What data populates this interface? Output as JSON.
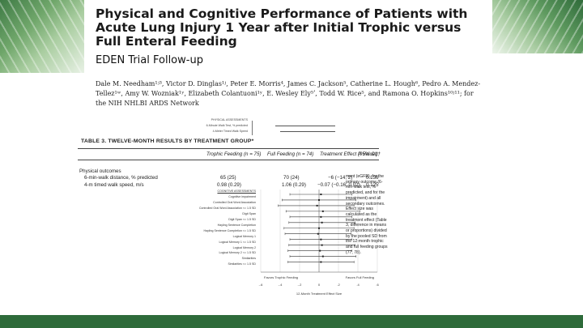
{
  "header": {
    "title": "Physical and Cognitive Performance of Patients with Acute Lung Injury 1 Year after Initial Trophic versus Full Enteral Feeding",
    "subtitle": "EDEN Trial Follow-up",
    "authors": "Dale M. Needham¹ʲ³, Victor D. Dinglas¹ʲ, Peter E. Morris⁴, James C. Jackson⁵, Catherine L. Hough⁶, Pedro A. Mendez-Tellez¹ʷ, Amy W. Wozniak¹ʸ, Elizabeth Colantuoni¹ʸ, E. Wesley Ely⁵ʹ, Todd W. Rice⁵, and Ramona O. Hopkins¹⁰ʲ¹¹; for the NIH NHLBI ARDS Network"
  },
  "inset": {
    "rows": [
      "PHYSICAL ASSESSMENTS",
      "6-Minute Walk Test, % predicted",
      "4-Meter Timed Walk Speed"
    ]
  },
  "table": {
    "title": "TABLE 3. TWELVE-MONTH RESULTS BY TREATMENT GROUP*",
    "columns": [
      "Trophic Feeding (n = 75)",
      "Full Feeding (n = 74)",
      "Treatment Effect (95% CI)†",
      "P Value‡"
    ],
    "section": "Physical outcomes",
    "rows": [
      {
        "label": "6-min-walk distance, % predicted",
        "trophic": "65 (25)",
        "full": "70 (24)",
        "effect": "−6 (−14, 2)",
        "p": "0.136"
      },
      {
        "label": "4-m timed walk speed, m/s",
        "trophic": "0.98 (0.29)",
        "full": "1.06 (0.29)",
        "effect": "−0.07 (−0.16, 0.02)",
        "p": "0.125"
      }
    ]
  },
  "overlay_note": "ment (eGFR), for the primary outcome (6-min-walk test, % predicted, and for the impairment) and all secondary outcomes. Effect size was calculated as the treatment effect (Table 3, difference in means or proportions) divided by the pooled SD from the 12-month trophic and full feeding groups (77, 78).",
  "forest": {
    "labels": [
      "COGNITIVE ASSESSMENTS",
      "Cognitive impairment",
      "Controlled Oral Word Association",
      "Controlled Oral Word Association <= 1.5 SD",
      "Digit Span",
      "Digit Span <= 1.5 SD",
      "Hayling Sentence Completion",
      "Hayling Sentence Completion <= 1.5 SD",
      "Logical Memory 1",
      "Logical Memory 1 <= 1.5 SD",
      "Logical Memory 2",
      "Logical Memory 2 <= 1.5 SD",
      "Similarities",
      "Similarities <= 1.5 SD"
    ],
    "favors_left": "Favors Trophic Feeding",
    "favors_right": "Favors Full Feeding",
    "ticks": [
      "-.6",
      "-.4",
      "-.2",
      "0",
      ".2",
      ".4",
      ".6"
    ],
    "xlabel": "12-Month Treatment Effect Size"
  },
  "chart_data": {
    "type": "scatter",
    "title": "",
    "xlabel": "12-Month Treatment Effect Size",
    "ylabel": "",
    "xlim": [
      -0.6,
      0.6
    ],
    "categories": [
      "Cognitive impairment",
      "Controlled Oral Word Association",
      "Controlled Oral Word Association <= 1.5 SD",
      "Digit Span",
      "Digit Span <= 1.5 SD",
      "Hayling Sentence Completion",
      "Hayling Sentence Completion <= 1.5 SD",
      "Logical Memory 1",
      "Logical Memory 1 <= 1.5 SD",
      "Logical Memory 2",
      "Logical Memory 2 <= 1.5 SD",
      "Similarities",
      "Similarities <= 1.5 SD"
    ],
    "series": [
      {
        "values": [
          0.02,
          0.0,
          -0.02,
          0.04,
          0.02,
          0.03,
          0.0,
          -0.01,
          0.02,
          0.03,
          0.01,
          0.04,
          0.02
        ],
        "ci_low": [
          -0.3,
          -0.38,
          -0.42,
          -0.34,
          -0.3,
          -0.31,
          -0.36,
          -0.35,
          -0.3,
          -0.31,
          -0.32,
          -0.3,
          -0.32
        ],
        "ci_high": [
          0.34,
          0.38,
          0.36,
          0.42,
          0.34,
          0.37,
          0.36,
          0.33,
          0.34,
          0.37,
          0.34,
          0.38,
          0.36
        ]
      }
    ]
  }
}
